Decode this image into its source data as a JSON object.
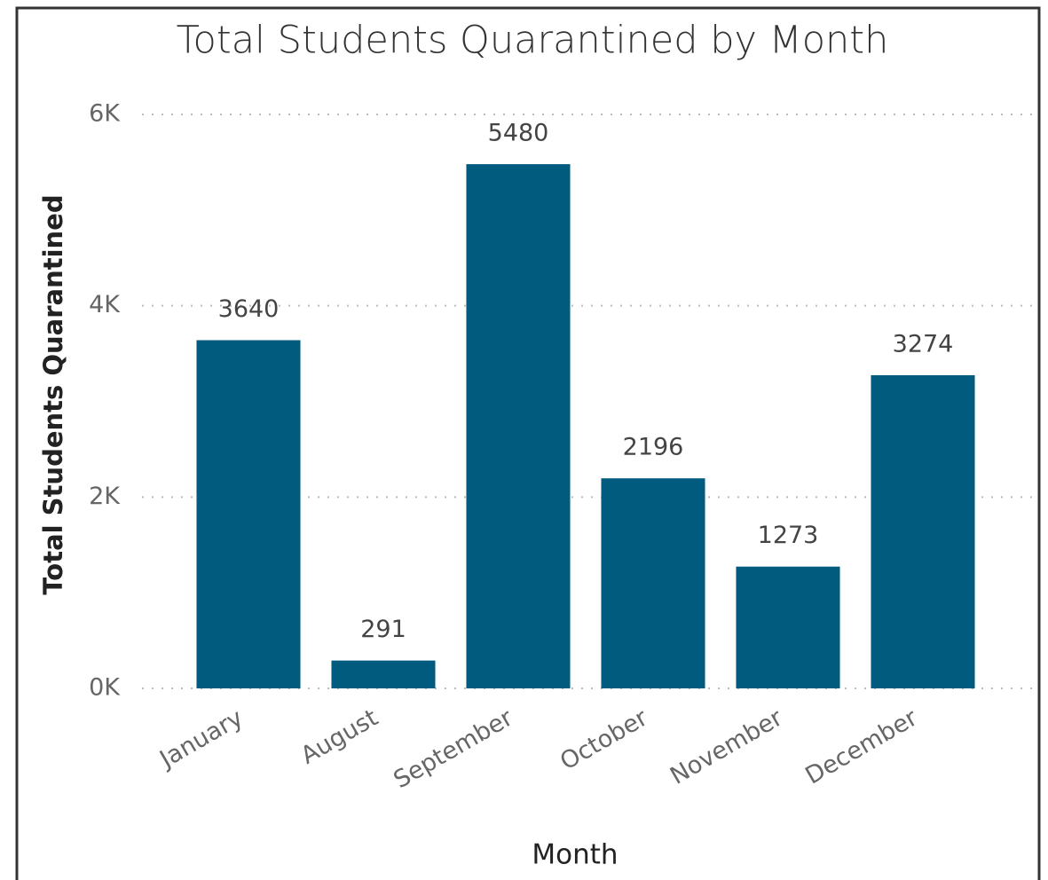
{
  "chart_data": {
    "type": "bar",
    "title": "Total Students Quarantined by Month",
    "x_label": "Month",
    "y_label": "Total Students Quarantined",
    "categories": [
      "January",
      "August",
      "September",
      "October",
      "November",
      "December"
    ],
    "values": [
      3640,
      291,
      5480,
      2196,
      1273,
      3274
    ],
    "color": "#005b7e",
    "ylim": [
      0,
      6000
    ],
    "yticks": [
      {
        "value": 0,
        "label": "0K"
      },
      {
        "value": 2000,
        "label": "2K"
      },
      {
        "value": 4000,
        "label": "4K"
      },
      {
        "value": 6000,
        "label": "6K"
      }
    ],
    "grid": true
  }
}
